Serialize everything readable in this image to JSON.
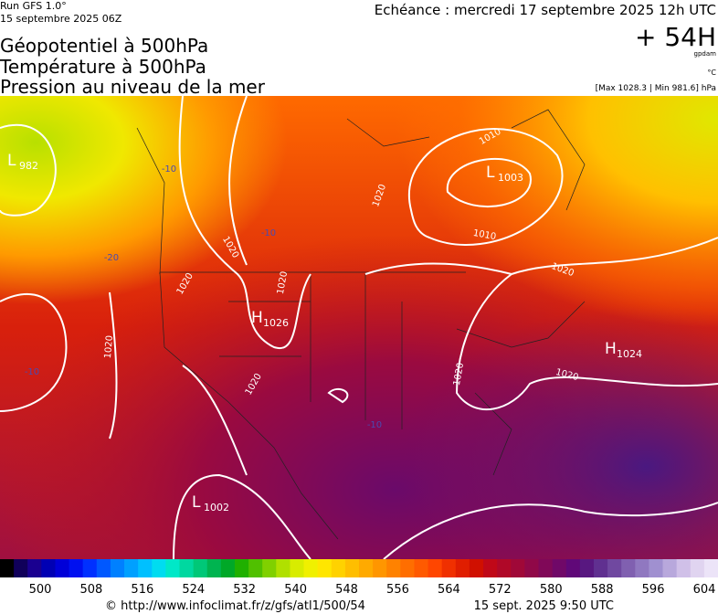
{
  "header": {
    "run": "Run GFS 1.0°",
    "run_date": "15 septembre 2025 06Z",
    "fields": [
      "Géopotentiel à 500hPa",
      "Température à 500hPa",
      "Pression au niveau de la mer"
    ],
    "valid_time": "Echéance : mercredi 17 septembre 2025 12h UTC",
    "lead": "+ 54H",
    "unit_geopotential": "gpdam",
    "unit_temperature": "°C",
    "pressure_range": "[Max 1028.3 | Min 981.6] hPa"
  },
  "map": {
    "pressure_centers": [
      {
        "letter": "L",
        "value": 982
      },
      {
        "letter": "L",
        "value": 1003
      },
      {
        "letter": "H",
        "value": 1026
      },
      {
        "letter": "H",
        "value": 1024
      },
      {
        "letter": "L",
        "value": 1002
      }
    ],
    "isobar_labels": [
      1010,
      1010,
      1020,
      1020,
      1020,
      1020,
      1020,
      1020,
      1020,
      1020,
      1020
    ],
    "temperature_labels": [
      -10,
      -10,
      -20,
      -10,
      -10
    ]
  },
  "colorbar": {
    "labels": [
      500,
      508,
      516,
      524,
      532,
      540,
      548,
      556,
      564,
      572,
      580,
      588,
      596,
      604
    ],
    "colors": [
      "#000000",
      "#10005a",
      "#1a0090",
      "#0000b4",
      "#0000d8",
      "#0010f0",
      "#0030ff",
      "#0058ff",
      "#0080ff",
      "#00a0ff",
      "#00c0ff",
      "#00dcf0",
      "#00e8c8",
      "#00d8a0",
      "#00c878",
      "#00b450",
      "#00a828",
      "#20b000",
      "#50c000",
      "#80d000",
      "#b0e000",
      "#d8ec00",
      "#f0f000",
      "#ffe600",
      "#ffd200",
      "#ffbe00",
      "#ffaa00",
      "#ff9600",
      "#ff8200",
      "#ff6e00",
      "#ff5a00",
      "#ff4600",
      "#f03000",
      "#e01e00",
      "#d01000",
      "#c00818",
      "#b00828",
      "#a00838",
      "#900848",
      "#800858",
      "#700868",
      "#600878",
      "#581880",
      "#603090",
      "#7048a0",
      "#8060b0",
      "#9078c0",
      "#a090d0",
      "#b8a8dc",
      "#d0c0e8",
      "#e0d4f0",
      "#ece4f8"
    ]
  },
  "footer": {
    "source": "© http://www.infoclimat.fr/z/gfs/atl1/500/54",
    "generated": "15 sept. 2025  9:50 UTC"
  }
}
